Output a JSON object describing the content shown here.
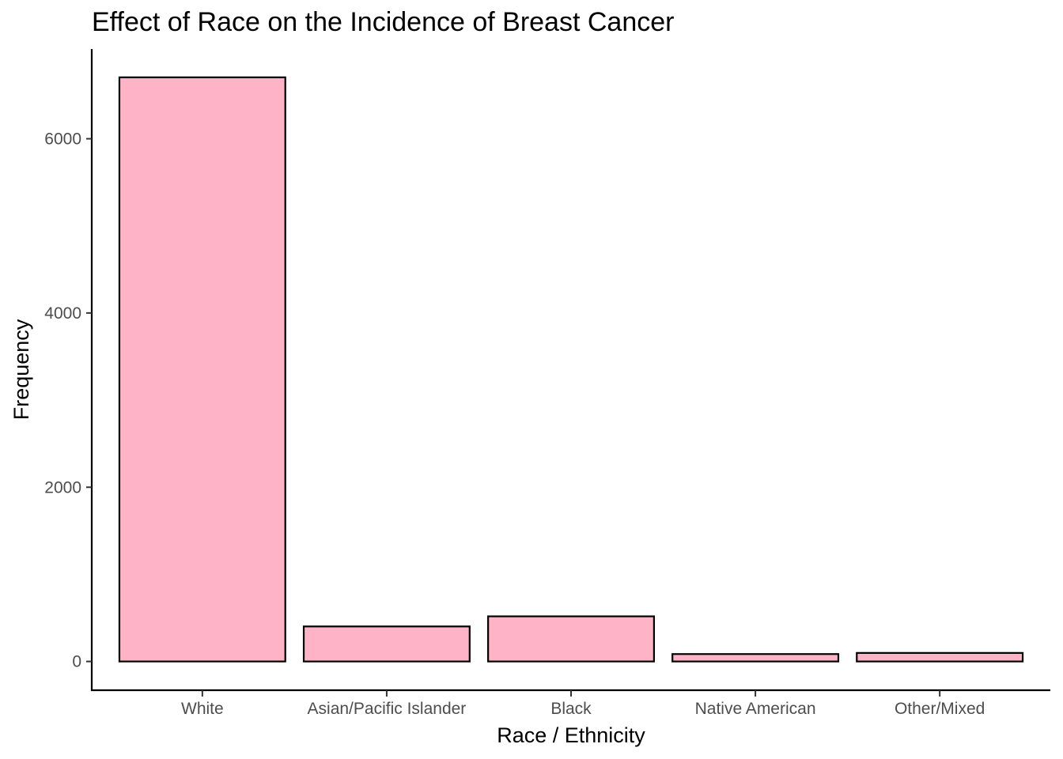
{
  "chart_data": {
    "type": "bar",
    "title": "Effect of Race on the Incidence of Breast Cancer",
    "xlabel": "Race / Ethnicity",
    "ylabel": "Frequency",
    "categories": [
      "White",
      "Asian/Pacific Islander",
      "Black",
      "Native American",
      "Other/Mixed"
    ],
    "values": [
      6705,
      402,
      518,
      85,
      98
    ],
    "ylim": [
      -330,
      7030
    ],
    "yticks": [
      0,
      2000,
      4000,
      6000
    ],
    "ytick_labels": [
      "0",
      "2000",
      "4000",
      "6000"
    ],
    "grid": false,
    "legend": "none",
    "bar_fill": "#FFB3C6",
    "bar_outline": "#000000"
  }
}
